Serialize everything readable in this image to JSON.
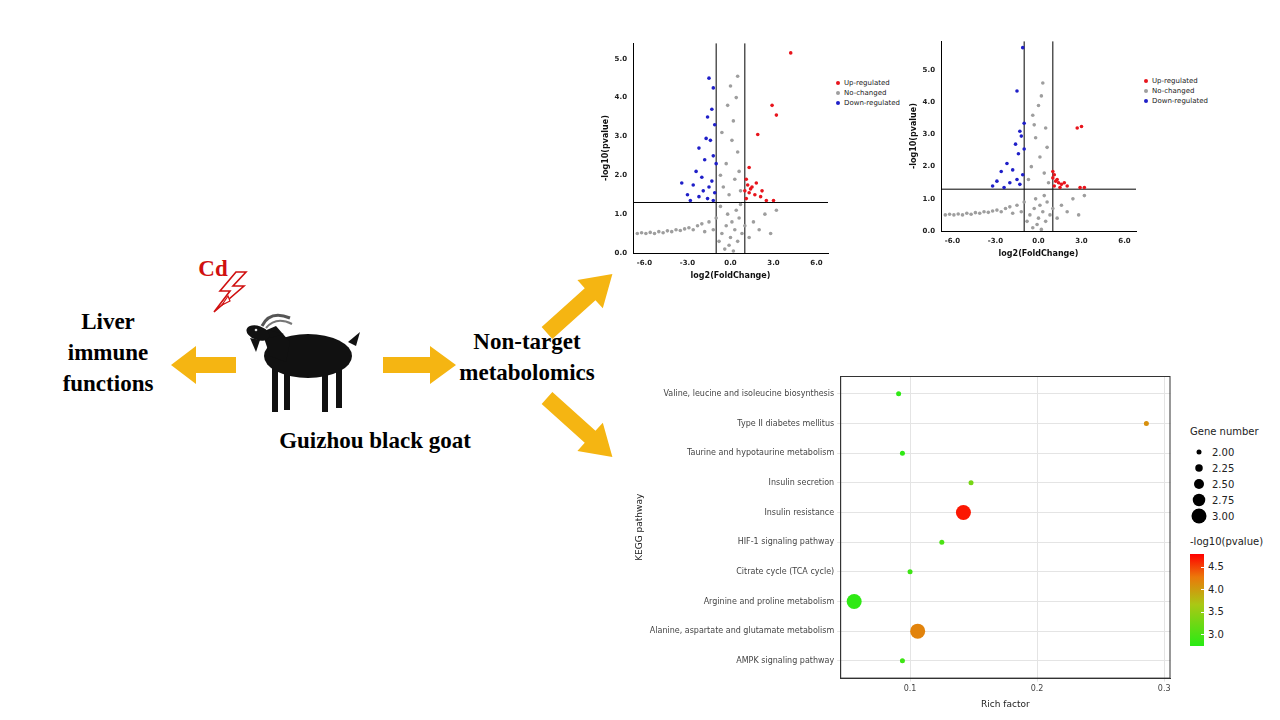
{
  "diagram": {
    "left_label": [
      "Liver",
      "immune",
      "functions"
    ],
    "exposure": "Cd",
    "animal": "Guizhou black goat",
    "method": [
      "Non-target",
      "metabolomics"
    ]
  },
  "chart_data": [
    {
      "type": "scatter",
      "x_label": "log2(FoldChange)",
      "y_label": "-log10(pvalue)",
      "xlim": [
        -6.8,
        6.8
      ],
      "ylim": [
        0,
        5.4
      ],
      "xticks": [
        {
          "value": -6,
          "label": "-6.0"
        },
        {
          "value": -3,
          "label": "-3.0"
        },
        {
          "value": 0,
          "label": "0.0"
        },
        {
          "value": 3,
          "label": "3.0"
        },
        {
          "value": 6,
          "label": "6.0"
        }
      ],
      "yticks": [
        {
          "value": 0,
          "label": "0.0"
        },
        {
          "value": 1,
          "label": "1.0"
        },
        {
          "value": 2,
          "label": "2.0"
        },
        {
          "value": 3,
          "label": "3.0"
        },
        {
          "value": 4,
          "label": "4.0"
        },
        {
          "value": 5,
          "label": "5.0"
        }
      ],
      "grid": false,
      "legend": "right",
      "threshold_lines": {
        "x": [
          -1,
          1
        ],
        "y": 1.3
      },
      "series": [
        {
          "name": "Up-regulated",
          "color": "#e8141c",
          "x": [
            4.2,
            2.9,
            3.2,
            1.9,
            1.3,
            1.1,
            1.2,
            1.5,
            1.0,
            1.3,
            1.7,
            2.1,
            1.1,
            2.5,
            3.0,
            1.4,
            1.8,
            2.2
          ],
          "values": [
            5.15,
            3.8,
            3.55,
            3.05,
            2.2,
            1.9,
            1.75,
            1.7,
            1.6,
            1.55,
            1.5,
            1.45,
            1.4,
            1.35,
            1.35,
            1.65,
            1.8,
            1.6
          ]
        },
        {
          "name": "No-changed",
          "color": "#9e9e9e",
          "x": [
            -6.5,
            -6.2,
            -5.9,
            -5.6,
            -5.3,
            -5.0,
            -4.7,
            -4.4,
            -4.1,
            -3.8,
            -3.5,
            -3.2,
            -2.9,
            -2.6,
            -2.3,
            -2.0,
            -1.8,
            -1.5,
            -1.2,
            -1.0,
            -0.8,
            -0.6,
            -0.4,
            -0.3,
            -0.2,
            -0.1,
            0.0,
            0.1,
            0.2,
            0.3,
            0.4,
            0.5,
            0.6,
            0.8,
            1.0,
            1.3,
            1.6,
            2.0,
            2.4,
            2.8,
            3.2,
            -0.7,
            0.7,
            -0.5,
            0.3,
            -0.3,
            0.5,
            0.1,
            -0.6,
            0.2,
            -0.2,
            0.4,
            0.5,
            0.6,
            -0.1,
            0.7,
            -0.7,
            0.0
          ],
          "values": [
            0.5,
            0.52,
            0.5,
            0.53,
            0.5,
            0.55,
            0.52,
            0.57,
            0.55,
            0.6,
            0.58,
            0.62,
            0.65,
            0.6,
            0.7,
            0.75,
            0.55,
            0.8,
            0.6,
            0.9,
            0.3,
            0.5,
            0.1,
            0.7,
            1.0,
            0.2,
            0.4,
            0.8,
            0.05,
            0.6,
            1.1,
            0.3,
            0.9,
            0.5,
            0.7,
            0.4,
            0.8,
            0.6,
            1.0,
            0.5,
            1.1,
            1.2,
            1.25,
            1.7,
            1.9,
            2.3,
            2.6,
            2.9,
            3.1,
            3.4,
            3.8,
            4.0,
            4.55,
            2.1,
            1.5,
            1.6,
            2.0,
            4.3
          ]
        },
        {
          "name": "Down-regulated",
          "color": "#1f1fc8",
          "x": [
            -1.5,
            -1.2,
            -1.3,
            -1.6,
            -1.1,
            -1.7,
            -1.4,
            -2.2,
            -1.2,
            -1.8,
            -1.0,
            -2.4,
            -2.0,
            -1.3,
            -2.6,
            -1.5,
            -3.0,
            -1.9,
            -1.1,
            -2.2,
            -1.6,
            -2.8,
            -1.2,
            -3.4
          ],
          "values": [
            4.5,
            4.25,
            3.7,
            3.5,
            3.3,
            2.95,
            2.9,
            2.7,
            2.5,
            2.4,
            2.3,
            2.1,
            1.95,
            1.85,
            1.75,
            1.7,
            1.5,
            1.6,
            1.55,
            1.45,
            1.4,
            1.35,
            1.35,
            1.8
          ]
        }
      ]
    },
    {
      "type": "scatter",
      "x_label": "log2(FoldChange)",
      "y_label": "-log10(pvalue)",
      "xlim": [
        -6.8,
        6.8
      ],
      "ylim": [
        0,
        5.9
      ],
      "xticks": [
        {
          "value": -6,
          "label": "-6.0"
        },
        {
          "value": -3,
          "label": "-3.0"
        },
        {
          "value": 0,
          "label": "0.0"
        },
        {
          "value": 3,
          "label": "3.0"
        },
        {
          "value": 6,
          "label": "6.0"
        }
      ],
      "yticks": [
        {
          "value": 0,
          "label": "0.0"
        },
        {
          "value": 1,
          "label": "1.0"
        },
        {
          "value": 2,
          "label": "2.0"
        },
        {
          "value": 3,
          "label": "3.0"
        },
        {
          "value": 4,
          "label": "4.0"
        },
        {
          "value": 5,
          "label": "5.0"
        }
      ],
      "grid": false,
      "legend": "right",
      "threshold_lines": {
        "x": [
          -1,
          1
        ],
        "y": 1.3
      },
      "series": [
        {
          "name": "Up-regulated",
          "color": "#e8141c",
          "x": [
            3.0,
            2.7,
            1.1,
            1.0,
            1.2,
            1.4,
            1.6,
            1.1,
            2.0,
            2.9,
            3.2,
            1.3,
            1.0,
            1.5,
            1.8
          ],
          "values": [
            3.25,
            3.2,
            1.75,
            1.65,
            1.55,
            1.5,
            1.45,
            1.4,
            1.4,
            1.35,
            1.35,
            1.6,
            1.85,
            1.35,
            1.5
          ]
        },
        {
          "name": "No-changed",
          "color": "#9e9e9e",
          "x": [
            -6.5,
            -6.2,
            -5.9,
            -5.6,
            -5.3,
            -5.0,
            -4.7,
            -4.4,
            -4.1,
            -3.8,
            -3.5,
            -3.2,
            -2.9,
            -2.6,
            -2.3,
            -2.0,
            -1.8,
            -1.5,
            -1.2,
            -1.0,
            -0.8,
            -0.6,
            -0.4,
            -0.3,
            -0.2,
            -0.1,
            0.0,
            0.1,
            0.2,
            0.3,
            0.4,
            0.5,
            0.6,
            0.8,
            1.0,
            1.3,
            1.6,
            2.0,
            2.4,
            2.8,
            3.2,
            0.3,
            0.2,
            -0.4,
            0.5,
            -0.2,
            0.6,
            0.1,
            -0.5,
            0.4,
            -0.7,
            0.7,
            0.0,
            -0.3
          ],
          "values": [
            0.5,
            0.52,
            0.5,
            0.53,
            0.5,
            0.55,
            0.52,
            0.57,
            0.55,
            0.6,
            0.58,
            0.62,
            0.65,
            0.6,
            0.7,
            0.75,
            0.55,
            0.8,
            0.6,
            0.9,
            0.3,
            0.5,
            0.1,
            0.7,
            1.0,
            0.2,
            0.4,
            0.8,
            0.05,
            0.6,
            1.1,
            0.3,
            0.9,
            0.5,
            0.7,
            0.4,
            0.8,
            0.6,
            1.0,
            0.5,
            1.1,
            4.6,
            4.2,
            3.6,
            3.2,
            2.9,
            2.6,
            2.3,
            2.0,
            1.8,
            1.6,
            1.5,
            3.9,
            3.3
          ]
        },
        {
          "name": "Down-regulated",
          "color": "#1f1fc8",
          "x": [
            -1.1,
            -1.5,
            -1.0,
            -1.3,
            -1.2,
            -1.6,
            -1.0,
            -1.4,
            -2.2,
            -2.6,
            -1.8,
            -1.1,
            -2.9,
            -2.0,
            -1.3,
            -3.2,
            -2.4,
            -1.5
          ],
          "values": [
            5.7,
            4.35,
            3.35,
            3.1,
            2.95,
            2.7,
            2.55,
            2.4,
            2.1,
            1.85,
            1.9,
            1.75,
            1.55,
            1.5,
            1.45,
            1.4,
            1.35,
            1.6
          ]
        }
      ]
    },
    {
      "type": "bubble",
      "x_label": "Rich factor",
      "y_label": "KEGG pathway",
      "categories": [
        "Valine, leucine and isoleucine biosynthesis",
        "Type II diabetes mellitus",
        "Taurine and hypotaurine metabolism",
        "Insulin secretion",
        "Insulin resistance",
        "HIF-1 signaling pathway",
        "Citrate cycle (TCA cycle)",
        "Arginine and proline metabolism",
        "Alanine, aspartate and glutamate metabolism",
        "AMPK signaling pathway"
      ],
      "values": [
        0.091,
        0.286,
        0.094,
        0.148,
        0.142,
        0.125,
        0.1,
        0.056,
        0.106,
        0.094
      ],
      "gene_number": [
        2,
        2,
        2,
        2,
        3,
        2,
        2,
        3,
        3,
        2
      ],
      "neg_log10_pvalue": [
        2.8,
        4.1,
        2.8,
        3.3,
        4.7,
        3.0,
        2.9,
        2.8,
        4.2,
        2.9
      ],
      "xlim": [
        0.045,
        0.305
      ],
      "xticks": [
        0.1,
        0.2,
        0.3
      ],
      "grid": true,
      "legend": "right",
      "size_legend": {
        "title": "Gene number",
        "ticks": [
          {
            "value": 2,
            "label": "2.00"
          },
          {
            "value": 2.25,
            "label": "2.25"
          },
          {
            "value": 2.5,
            "label": "2.50"
          },
          {
            "value": 2.75,
            "label": "2.75"
          },
          {
            "value": 3,
            "label": "3.00"
          }
        ]
      },
      "colorbar": {
        "title": "-log10(pvalue)",
        "range": [
          2.75,
          4.8
        ],
        "ticks": [
          {
            "value": 3,
            "label": "3.0"
          },
          {
            "value": 3.5,
            "label": "3.5"
          },
          {
            "value": 4,
            "label": "4.0"
          },
          {
            "value": 4.5,
            "label": "4.5"
          }
        ]
      }
    }
  ]
}
